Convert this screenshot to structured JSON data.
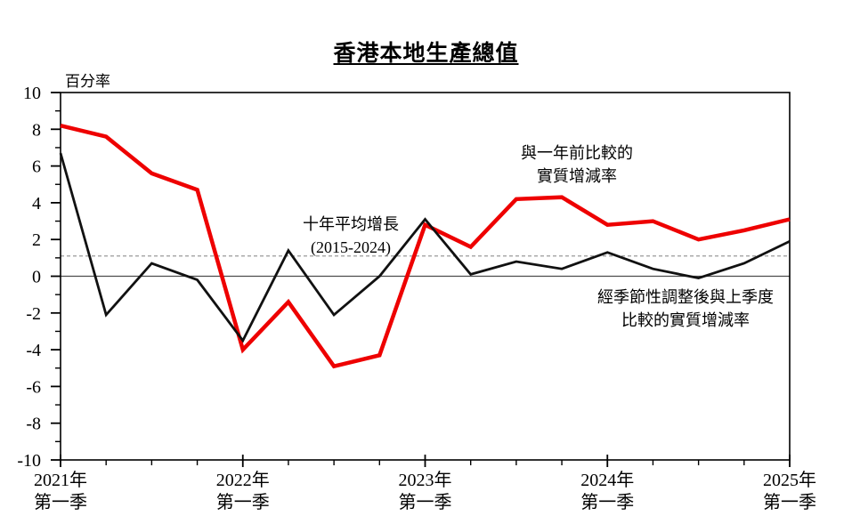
{
  "title": "香港本地生產總值",
  "y_axis": {
    "unit_label": "百分率",
    "labels": [
      "10",
      "8",
      "6",
      "4",
      "2",
      "0",
      "-2",
      "-4",
      "-6",
      "-8",
      "-10"
    ]
  },
  "x_axis": {
    "labels": [
      {
        "year": "2021年",
        "quarter": "第一季"
      },
      {
        "year": "2022年",
        "quarter": "第一季"
      },
      {
        "year": "2023年",
        "quarter": "第一季"
      },
      {
        "year": "2024年",
        "quarter": "第一季"
      },
      {
        "year": "2025年",
        "quarter": "第一季"
      }
    ]
  },
  "annotations": {
    "yoy": {
      "lines": [
        "與一年前比較的",
        "實質增減率"
      ]
    },
    "ten_year": {
      "lines": [
        "十年平均增長",
        "(2015-2024)"
      ]
    },
    "qoq": {
      "lines": [
        "經季節性調整後與上季度",
        "比較的實質增減率"
      ]
    }
  },
  "chart_data": {
    "type": "line",
    "title": "香港本地生產總值",
    "ylabel": "百分率",
    "ylim": [
      -10,
      10
    ],
    "y_major_step": 2,
    "y_minor_step": 1,
    "grid": false,
    "legend_position": "inline-annotations",
    "x": [
      "2021年第一季",
      "2021年第二季",
      "2021年第三季",
      "2021年第四季",
      "2022年第一季",
      "2022年第二季",
      "2022年第三季",
      "2022年第四季",
      "2023年第一季",
      "2023年第二季",
      "2023年第三季",
      "2023年第四季",
      "2024年第一季",
      "2024年第二季",
      "2024年第三季",
      "2024年第四季",
      "2025年第一季"
    ],
    "series": [
      {
        "name": "與一年前比較的實質增減率",
        "color": "#ee0000",
        "line_width": 4.5,
        "values": [
          8.2,
          7.6,
          5.6,
          4.7,
          -4.0,
          -1.4,
          -4.9,
          -4.3,
          2.8,
          1.6,
          4.2,
          4.3,
          2.8,
          3.0,
          2.0,
          2.5,
          3.1
        ]
      },
      {
        "name": "經季節性調整後與上季度比較的實質增減率",
        "color": "#111111",
        "line_width": 2.8,
        "values": [
          6.7,
          -2.1,
          0.7,
          -0.2,
          -3.5,
          1.4,
          -2.1,
          0.0,
          3.1,
          0.1,
          0.8,
          0.4,
          1.3,
          0.4,
          -0.1,
          0.7,
          1.9
        ]
      }
    ],
    "reference_line": {
      "label": "十年平均增長 (2015-2024)",
      "value": 1.1,
      "style": "dashed",
      "color": "#999999"
    },
    "zero_line": true
  }
}
